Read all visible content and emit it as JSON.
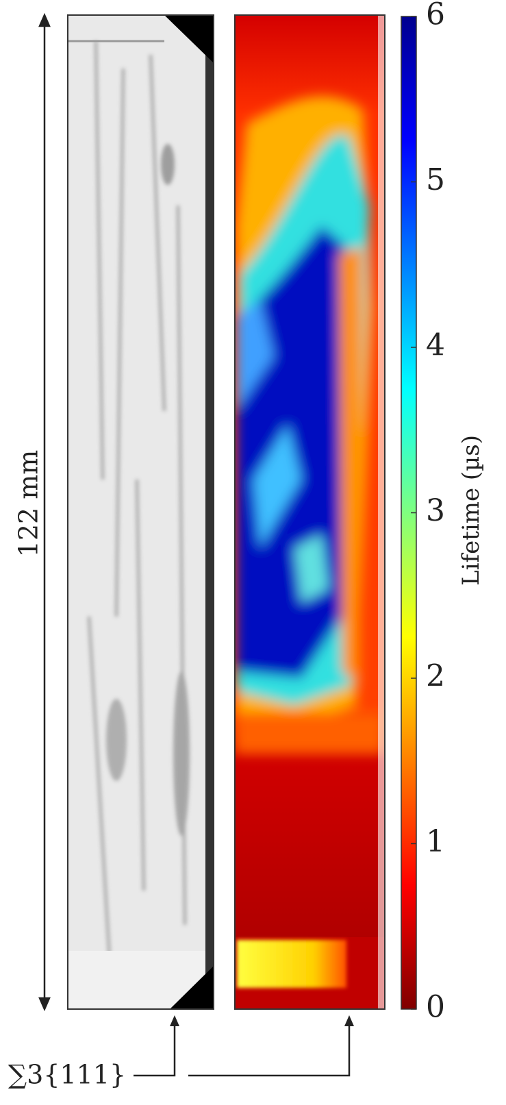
{
  "scale_label": "122 mm",
  "annotation": "∑3{111}",
  "colorbar": {
    "label": "Lifetime (µs)",
    "lim": [
      0,
      6
    ],
    "ticks": [
      0,
      1,
      2,
      3,
      4,
      5,
      6
    ]
  }
}
